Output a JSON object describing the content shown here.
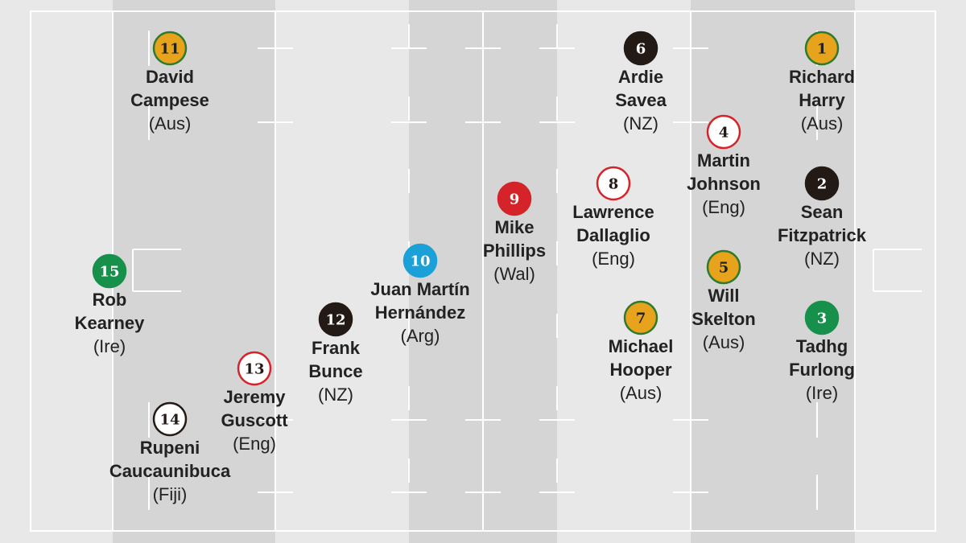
{
  "players": [
    {
      "number": "11",
      "name": [
        "David",
        "Campese"
      ],
      "country": "(Aus)"
    },
    {
      "number": "6",
      "name": [
        "Ardie",
        "Savea"
      ],
      "country": "(NZ)"
    },
    {
      "number": "1",
      "name": [
        "Richard",
        "Harry"
      ],
      "country": "(Aus)"
    },
    {
      "number": "4",
      "name": [
        "Martin",
        "Johnson"
      ],
      "country": "(Eng)"
    },
    {
      "number": "2",
      "name": [
        "Sean",
        "Fitzpatrick"
      ],
      "country": "(NZ)"
    },
    {
      "number": "8",
      "name": [
        "Lawrence",
        "Dallaglio"
      ],
      "country": "(Eng)"
    },
    {
      "number": "9",
      "name": [
        "Mike",
        "Phillips"
      ],
      "country": "(Wal)"
    },
    {
      "number": "10",
      "name": [
        "Juan Martín",
        "Hernández"
      ],
      "country": "(Arg)"
    },
    {
      "number": "15",
      "name": [
        "Rob",
        "Kearney"
      ],
      "country": "(Ire)"
    },
    {
      "number": "5",
      "name": [
        "Will",
        "Skelton"
      ],
      "country": "(Aus)"
    },
    {
      "number": "7",
      "name": [
        "Michael",
        "Hooper"
      ],
      "country": "(Aus)"
    },
    {
      "number": "3",
      "name": [
        "Tadhg",
        "Furlong"
      ],
      "country": "(Ire)"
    },
    {
      "number": "12",
      "name": [
        "Frank",
        "Bunce"
      ],
      "country": "(NZ)"
    },
    {
      "number": "13",
      "name": [
        "Jeremy",
        "Guscott"
      ],
      "country": "(Eng)"
    },
    {
      "number": "14",
      "name": [
        "Rupeni",
        "Caucaunibuca"
      ],
      "country": "(Fiji)"
    }
  ]
}
